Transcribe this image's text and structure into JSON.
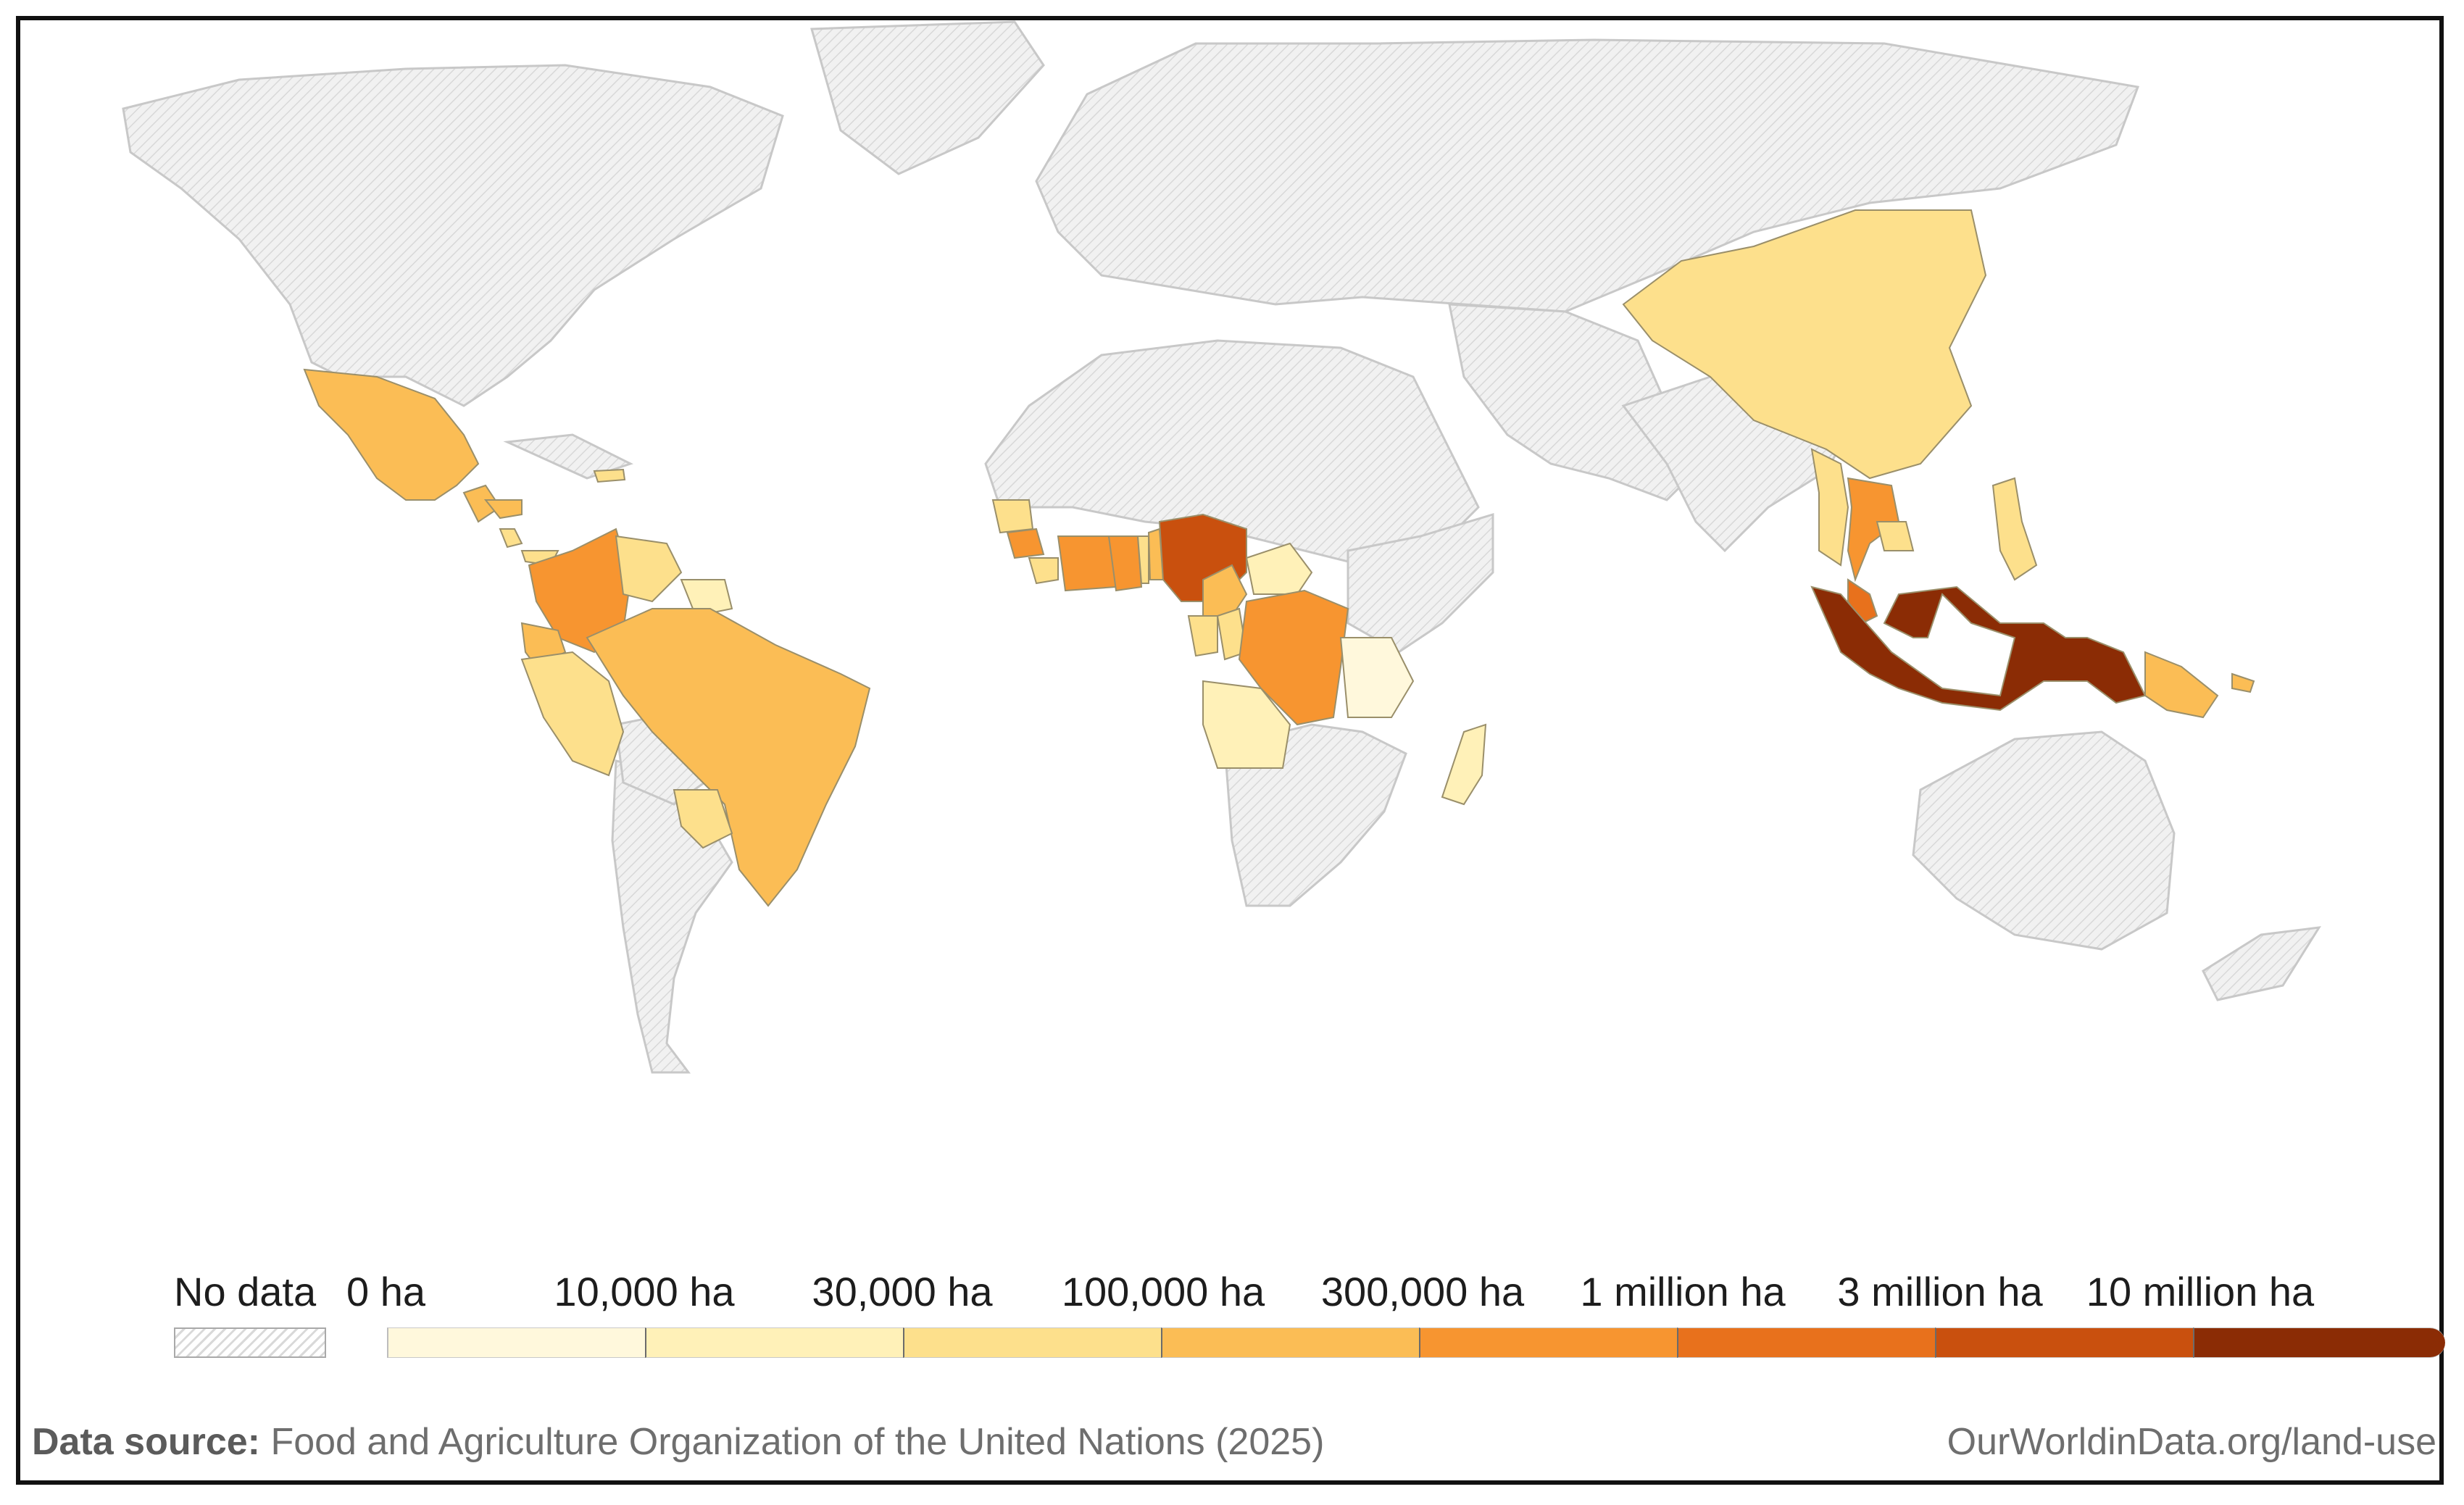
{
  "map": {
    "legend": {
      "no_data_label": "No data",
      "tick_labels": [
        "0 ha",
        "10,000 ha",
        "30,000 ha",
        "100,000 ha",
        "300,000 ha",
        "1 million ha",
        "3 million ha",
        "10 million ha"
      ],
      "colors": [
        "#fff8dc",
        "#fff1b8",
        "#fde08c",
        "#fbbd55",
        "#f79530",
        "#e8711c",
        "#c9500e",
        "#8b2c05"
      ]
    },
    "colors": {
      "no_data_fill": "#eeeeee",
      "no_data_hatch": "#d6d6d6",
      "border": "#c8c8c8"
    },
    "regions": [
      {
        "name": "Mexico",
        "bin": 3
      },
      {
        "name": "Guatemala",
        "bin": 3
      },
      {
        "name": "Honduras",
        "bin": 3
      },
      {
        "name": "Costa Rica",
        "bin": 2
      },
      {
        "name": "Panama",
        "bin": 2
      },
      {
        "name": "Dominican Republic",
        "bin": 2
      },
      {
        "name": "Colombia",
        "bin": 4
      },
      {
        "name": "Venezuela",
        "bin": 2
      },
      {
        "name": "Guyana",
        "bin": 1
      },
      {
        "name": "Ecuador",
        "bin": 3
      },
      {
        "name": "Peru",
        "bin": 2
      },
      {
        "name": "Brazil",
        "bin": 3
      },
      {
        "name": "Paraguay",
        "bin": 2
      },
      {
        "name": "Guinea",
        "bin": 2
      },
      {
        "name": "Sierra Leone",
        "bin": 4
      },
      {
        "name": "Liberia",
        "bin": 2
      },
      {
        "name": "Cote d'Ivoire",
        "bin": 4
      },
      {
        "name": "Ghana",
        "bin": 4
      },
      {
        "name": "Togo",
        "bin": 2
      },
      {
        "name": "Benin",
        "bin": 3
      },
      {
        "name": "Nigeria",
        "bin": 6
      },
      {
        "name": "Cameroon",
        "bin": 3
      },
      {
        "name": "Central African Republic",
        "bin": 1
      },
      {
        "name": "Gabon",
        "bin": 2
      },
      {
        "name": "Republic of the Congo",
        "bin": 2
      },
      {
        "name": "Democratic Republic of Congo",
        "bin": 4
      },
      {
        "name": "Angola",
        "bin": 1
      },
      {
        "name": "Tanzania",
        "bin": 0
      },
      {
        "name": "Madagascar",
        "bin": 1
      },
      {
        "name": "China",
        "bin": 2
      },
      {
        "name": "Myanmar",
        "bin": 2
      },
      {
        "name": "Thailand",
        "bin": 4
      },
      {
        "name": "Cambodia",
        "bin": 2
      },
      {
        "name": "Malaysia",
        "bin": 5
      },
      {
        "name": "Philippines",
        "bin": 2
      },
      {
        "name": "Indonesia",
        "bin": 7
      },
      {
        "name": "Papua New Guinea",
        "bin": 3
      },
      {
        "name": "Solomon Islands",
        "bin": 3
      }
    ]
  },
  "footer": {
    "source_label": "Data source:",
    "source_text": "Food and Agriculture Organization of the United Nations (2025)",
    "url": "OurWorldinData.org/land-use"
  }
}
